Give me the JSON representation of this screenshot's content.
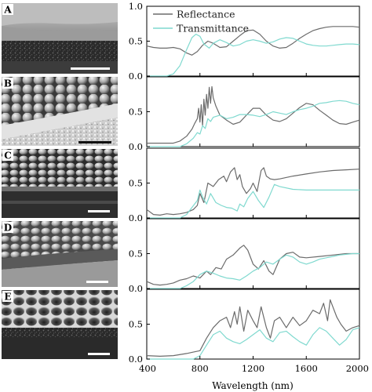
{
  "panel_labels": [
    "A",
    "B",
    "C",
    "D",
    "E"
  ],
  "colors": {
    "reflectance": "#6b6b6b",
    "transmittance": "#7fd9cf",
    "axis": "#000000"
  },
  "chart_data": {
    "type": "line",
    "xlabel": "Wavelength (nm)",
    "xlim": [
      400,
      2000
    ],
    "x_ticks": [
      "400",
      "800",
      "1200",
      "1600",
      "2000"
    ],
    "x_tick_values": [
      400,
      800,
      1200,
      1600,
      2000
    ],
    "legend": [
      "Reflectance",
      "Transmittance"
    ],
    "legend_position": "top",
    "grid": false,
    "panels": [
      {
        "label": "A",
        "y_ticks": [
          "0.0",
          "0.5",
          "1.0"
        ],
        "y_tick_values": [
          0,
          0.5,
          1.0
        ],
        "ylim": [
          0,
          1.0
        ],
        "series": [
          {
            "name": "Reflectance",
            "x": [
              400,
              450,
              500,
              550,
              600,
              650,
              700,
              740,
              780,
              820,
              860,
              900,
              950,
              1000,
              1050,
              1100,
              1150,
              1200,
              1250,
              1300,
              1350,
              1400,
              1450,
              1500,
              1550,
              1600,
              1650,
              1700,
              1750,
              1800,
              1850,
              1900,
              1950,
              2000
            ],
            "y": [
              0.43,
              0.41,
              0.4,
              0.4,
              0.41,
              0.39,
              0.33,
              0.3,
              0.35,
              0.44,
              0.5,
              0.47,
              0.41,
              0.42,
              0.5,
              0.58,
              0.65,
              0.66,
              0.6,
              0.5,
              0.43,
              0.4,
              0.41,
              0.47,
              0.54,
              0.6,
              0.65,
              0.68,
              0.7,
              0.71,
              0.71,
              0.71,
              0.71,
              0.7
            ]
          },
          {
            "name": "Transmittance",
            "x": [
              400,
              550,
              600,
              650,
              700,
              740,
              770,
              800,
              830,
              870,
              900,
              950,
              1000,
              1050,
              1100,
              1150,
              1200,
              1250,
              1300,
              1350,
              1400,
              1450,
              1500,
              1550,
              1600,
              1650,
              1700,
              1750,
              1800,
              1850,
              1900,
              1950,
              2000
            ],
            "y": [
              0.0,
              0.0,
              0.03,
              0.15,
              0.38,
              0.55,
              0.6,
              0.57,
              0.46,
              0.4,
              0.47,
              0.52,
              0.48,
              0.43,
              0.45,
              0.5,
              0.52,
              0.5,
              0.47,
              0.49,
              0.53,
              0.55,
              0.54,
              0.5,
              0.46,
              0.44,
              0.43,
              0.43,
              0.44,
              0.45,
              0.46,
              0.46,
              0.45
            ]
          }
        ]
      },
      {
        "label": "B",
        "y_ticks": [
          "0.0",
          "0.5"
        ],
        "y_tick_values": [
          0,
          0.5
        ],
        "ylim": [
          0,
          1.0
        ],
        "series": [
          {
            "name": "Reflectance",
            "x": [
              400,
              500,
              600,
              650,
              700,
              740,
              760,
              780,
              790,
              800,
              810,
              820,
              830,
              840,
              850,
              860,
              870,
              880,
              890,
              900,
              920,
              950,
              1000,
              1050,
              1100,
              1150,
              1200,
              1250,
              1300,
              1350,
              1400,
              1450,
              1500,
              1550,
              1600,
              1650,
              1700,
              1750,
              1800,
              1850,
              1900,
              1950,
              2000
            ],
            "y": [
              0.05,
              0.05,
              0.05,
              0.08,
              0.15,
              0.25,
              0.33,
              0.4,
              0.55,
              0.35,
              0.6,
              0.3,
              0.68,
              0.45,
              0.75,
              0.55,
              0.85,
              0.62,
              0.86,
              0.7,
              0.58,
              0.45,
              0.38,
              0.32,
              0.35,
              0.45,
              0.55,
              0.55,
              0.45,
              0.38,
              0.36,
              0.4,
              0.48,
              0.56,
              0.62,
              0.6,
              0.52,
              0.45,
              0.38,
              0.33,
              0.32,
              0.35,
              0.38
            ]
          },
          {
            "name": "Transmittance",
            "x": [
              400,
              650,
              700,
              750,
              780,
              800,
              820,
              840,
              860,
              880,
              900,
              950,
              1000,
              1050,
              1100,
              1150,
              1200,
              1250,
              1300,
              1350,
              1400,
              1450,
              1500,
              1550,
              1600,
              1650,
              1700,
              1750,
              1800,
              1850,
              1900,
              1950,
              2000
            ],
            "y": [
              0.0,
              0.0,
              0.04,
              0.12,
              0.2,
              0.18,
              0.3,
              0.26,
              0.4,
              0.36,
              0.42,
              0.45,
              0.4,
              0.42,
              0.46,
              0.46,
              0.45,
              0.43,
              0.46,
              0.5,
              0.48,
              0.46,
              0.5,
              0.53,
              0.55,
              0.58,
              0.62,
              0.63,
              0.65,
              0.66,
              0.65,
              0.62,
              0.6
            ]
          }
        ]
      },
      {
        "label": "C",
        "y_ticks": [
          "0.0",
          "0.5"
        ],
        "y_tick_values": [
          0,
          0.5
        ],
        "ylim": [
          0,
          1.0
        ],
        "series": [
          {
            "name": "Reflectance",
            "x": [
              400,
              450,
              500,
              550,
              600,
              650,
              700,
              750,
              780,
              800,
              830,
              860,
              900,
              940,
              980,
              1000,
              1030,
              1060,
              1080,
              1100,
              1120,
              1150,
              1180,
              1200,
              1230,
              1260,
              1280,
              1300,
              1330,
              1360,
              1400,
              1500,
              1600,
              1700,
              1800,
              1900,
              2000
            ],
            "y": [
              0.12,
              0.05,
              0.04,
              0.06,
              0.05,
              0.06,
              0.08,
              0.12,
              0.18,
              0.35,
              0.22,
              0.5,
              0.45,
              0.55,
              0.6,
              0.52,
              0.66,
              0.72,
              0.55,
              0.62,
              0.45,
              0.35,
              0.42,
              0.5,
              0.38,
              0.68,
              0.72,
              0.6,
              0.56,
              0.55,
              0.56,
              0.6,
              0.63,
              0.66,
              0.68,
              0.69,
              0.7
            ]
          },
          {
            "name": "Transmittance",
            "x": [
              400,
              650,
              700,
              740,
              780,
              800,
              820,
              850,
              880,
              920,
              960,
              1000,
              1040,
              1080,
              1100,
              1130,
              1160,
              1200,
              1240,
              1280,
              1320,
              1360,
              1400,
              1500,
              1600,
              1700,
              1800,
              1900,
              2000
            ],
            "y": [
              0.0,
              0.0,
              0.05,
              0.15,
              0.25,
              0.4,
              0.3,
              0.2,
              0.35,
              0.22,
              0.18,
              0.15,
              0.14,
              0.1,
              0.2,
              0.16,
              0.28,
              0.38,
              0.25,
              0.15,
              0.3,
              0.48,
              0.45,
              0.41,
              0.4,
              0.4,
              0.4,
              0.4,
              0.4
            ]
          }
        ]
      },
      {
        "label": "D",
        "y_ticks": [
          "0.0",
          "0.5"
        ],
        "y_tick_values": [
          0,
          0.5
        ],
        "ylim": [
          0,
          1.0
        ],
        "series": [
          {
            "name": "Reflectance",
            "x": [
              400,
              450,
              500,
              550,
              600,
              650,
              700,
              750,
              800,
              850,
              880,
              920,
              960,
              1000,
              1050,
              1100,
              1130,
              1160,
              1200,
              1240,
              1280,
              1320,
              1350,
              1400,
              1450,
              1500,
              1550,
              1600,
              1700,
              1800,
              1900,
              2000
            ],
            "y": [
              0.1,
              0.06,
              0.05,
              0.06,
              0.08,
              0.12,
              0.14,
              0.18,
              0.15,
              0.25,
              0.2,
              0.3,
              0.28,
              0.42,
              0.48,
              0.58,
              0.62,
              0.55,
              0.35,
              0.28,
              0.4,
              0.25,
              0.2,
              0.42,
              0.5,
              0.52,
              0.45,
              0.44,
              0.46,
              0.48,
              0.5,
              0.5
            ]
          },
          {
            "name": "Transmittance",
            "x": [
              400,
              650,
              700,
              750,
              800,
              850,
              900,
              950,
              1000,
              1050,
              1100,
              1150,
              1200,
              1250,
              1300,
              1350,
              1400,
              1450,
              1500,
              1550,
              1600,
              1650,
              1700,
              1750,
              1800,
              1850,
              1900,
              1950,
              2000
            ],
            "y": [
              0.0,
              0.0,
              0.04,
              0.1,
              0.2,
              0.25,
              0.22,
              0.18,
              0.15,
              0.14,
              0.12,
              0.18,
              0.25,
              0.3,
              0.38,
              0.35,
              0.42,
              0.48,
              0.45,
              0.38,
              0.35,
              0.38,
              0.42,
              0.44,
              0.46,
              0.48,
              0.49,
              0.5,
              0.5
            ]
          }
        ]
      },
      {
        "label": "E",
        "y_ticks": [
          "0.0",
          "0.5"
        ],
        "y_tick_values": [
          0,
          0.5
        ],
        "ylim": [
          0,
          1.0
        ],
        "series": [
          {
            "name": "Reflectance",
            "x": [
              400,
              500,
              600,
              700,
              750,
              800,
              850,
              900,
              950,
              1000,
              1030,
              1060,
              1080,
              1100,
              1130,
              1160,
              1200,
              1230,
              1260,
              1300,
              1330,
              1360,
              1400,
              1450,
              1500,
              1550,
              1600,
              1650,
              1700,
              1730,
              1760,
              1780,
              1800,
              1830,
              1860,
              1900,
              1950,
              2000
            ],
            "y": [
              0.05,
              0.04,
              0.05,
              0.08,
              0.1,
              0.12,
              0.3,
              0.45,
              0.55,
              0.6,
              0.45,
              0.68,
              0.5,
              0.75,
              0.4,
              0.7,
              0.55,
              0.45,
              0.75,
              0.45,
              0.3,
              0.55,
              0.6,
              0.45,
              0.6,
              0.48,
              0.55,
              0.7,
              0.65,
              0.8,
              0.55,
              0.85,
              0.75,
              0.6,
              0.5,
              0.4,
              0.45,
              0.48
            ]
          },
          {
            "name": "Transmittance",
            "x": [
              400,
              750,
              800,
              850,
              900,
              950,
              1000,
              1050,
              1100,
              1150,
              1200,
              1250,
              1300,
              1350,
              1400,
              1450,
              1500,
              1550,
              1600,
              1650,
              1700,
              1750,
              1800,
              1850,
              1900,
              1950,
              2000
            ],
            "y": [
              0.0,
              0.0,
              0.05,
              0.2,
              0.35,
              0.4,
              0.3,
              0.25,
              0.22,
              0.28,
              0.35,
              0.42,
              0.3,
              0.25,
              0.38,
              0.4,
              0.32,
              0.25,
              0.2,
              0.35,
              0.45,
              0.4,
              0.3,
              0.2,
              0.28,
              0.42,
              0.45
            ]
          }
        ]
      }
    ]
  }
}
